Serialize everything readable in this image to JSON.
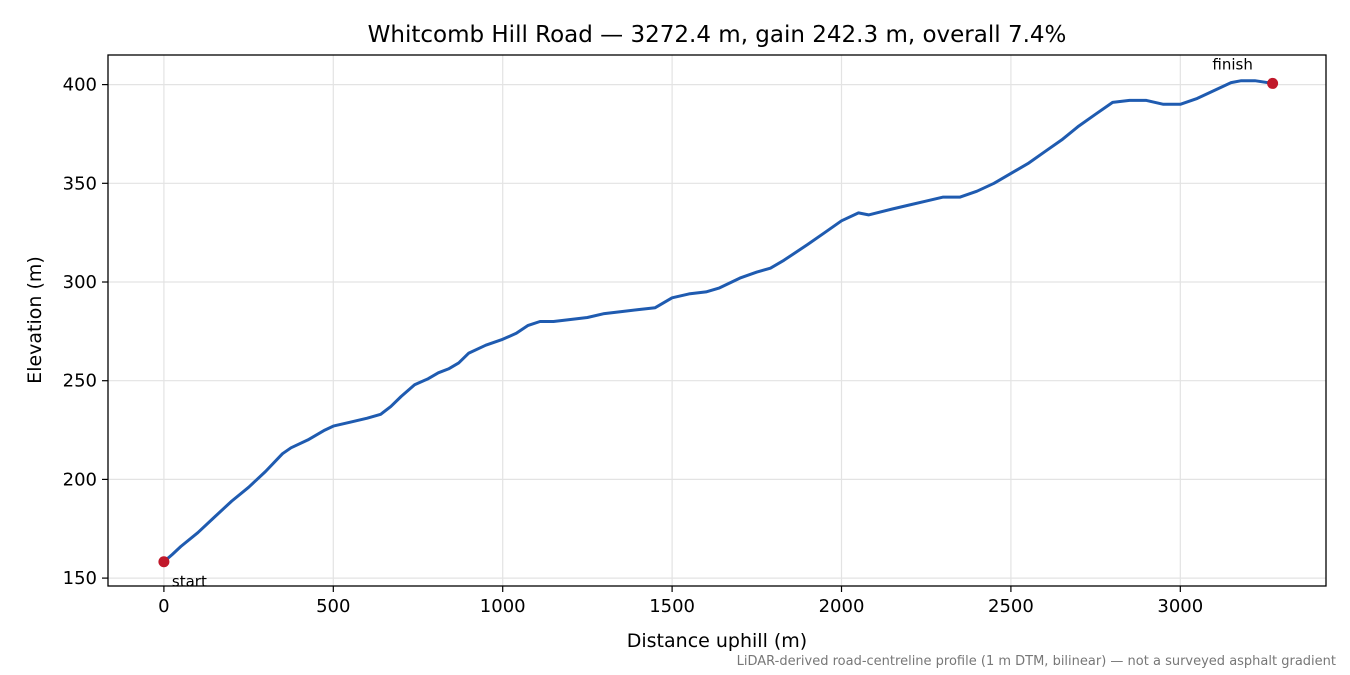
{
  "chart_data": {
    "type": "line",
    "title": "Whitcomb Hill Road — 3272.4 m, gain 242.3 m, overall 7.4%",
    "xlabel": "Distance uphill (m)",
    "ylabel": "Elevation (m)",
    "xlim": [
      -165,
      3430
    ],
    "ylim": [
      146,
      415
    ],
    "xticks": [
      0,
      500,
      1000,
      1500,
      2000,
      2500,
      3000
    ],
    "yticks": [
      150,
      200,
      250,
      300,
      350,
      400
    ],
    "grid": true,
    "line_color": "#1f5bb0",
    "marker_color": "#c0182a",
    "series": [
      {
        "x": [
          0,
          25,
          50,
          100,
          150,
          200,
          250,
          300,
          350,
          375,
          425,
          475,
          500,
          550,
          600,
          640,
          670,
          700,
          740,
          780,
          810,
          840,
          870,
          900,
          950,
          1000,
          1040,
          1075,
          1110,
          1150,
          1200,
          1250,
          1300,
          1350,
          1400,
          1450,
          1500,
          1550,
          1600,
          1640,
          1700,
          1750,
          1790,
          1830,
          1900,
          1950,
          2000,
          2050,
          2080,
          2150,
          2200,
          2250,
          2300,
          2350,
          2400,
          2450,
          2500,
          2550,
          2600,
          2650,
          2700,
          2750,
          2800,
          2850,
          2900,
          2950,
          3000,
          3050,
          3100,
          3150,
          3180,
          3220,
          3272.4
        ],
        "y": [
          158.3,
          162,
          166,
          173,
          181,
          189,
          196,
          204,
          213,
          216,
          220,
          225,
          227,
          229,
          231,
          233,
          237,
          242,
          248,
          251,
          254,
          256,
          259,
          264,
          268,
          271,
          274,
          278,
          280,
          280,
          281,
          282,
          284,
          285,
          286,
          287,
          292,
          294,
          295,
          297,
          302,
          305,
          307,
          311,
          319,
          325,
          331,
          335,
          334,
          337,
          339,
          341,
          343,
          343,
          346,
          350,
          355,
          360,
          366,
          372,
          379,
          385,
          391,
          392,
          392,
          390,
          390,
          393,
          397,
          401,
          402,
          402,
          400.6
        ]
      }
    ],
    "annotations": [
      {
        "text": "start",
        "x": 0,
        "y": 158.3
      },
      {
        "text": "finish",
        "x": 3272.4,
        "y": 400.6
      }
    ],
    "footnote": "LiDAR-derived road-centreline profile (1 m DTM, bilinear) — not a surveyed asphalt gradient"
  }
}
